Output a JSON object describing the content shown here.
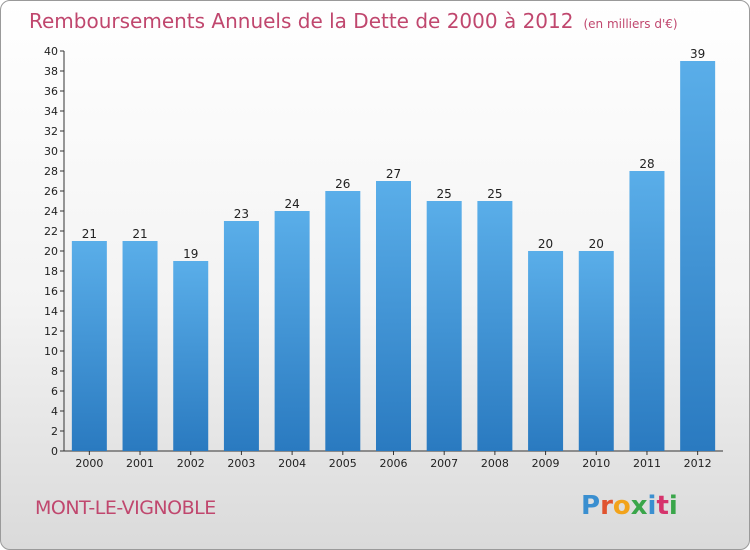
{
  "chart_data": {
    "type": "bar",
    "title": "Remboursements Annuels de la Dette de 2000 à 2012",
    "unit_note": "(en milliers d'€)",
    "categories": [
      "2000",
      "2001",
      "2002",
      "2003",
      "2004",
      "2005",
      "2006",
      "2007",
      "2008",
      "2009",
      "2010",
      "2011",
      "2012"
    ],
    "values": [
      21,
      21,
      19,
      23,
      24,
      26,
      27,
      25,
      25,
      20,
      20,
      28,
      39
    ],
    "ylim": [
      0,
      40
    ],
    "ytick_step": 2,
    "xlabel": "",
    "ylabel": "",
    "grid": false,
    "colors": {
      "bar_light": "#5aaee9",
      "bar_dark": "#2a7ac0",
      "title": "#c0476e"
    }
  },
  "footer": {
    "commune": "MONT-LE-VIGNOBLE",
    "brand": "Proxiti"
  },
  "logo_colors": [
    "#3a8fd0",
    "#e0532f",
    "#f2a31b",
    "#3aa64a",
    "#3a8fd0",
    "#d6336c",
    "#3aa64a"
  ]
}
